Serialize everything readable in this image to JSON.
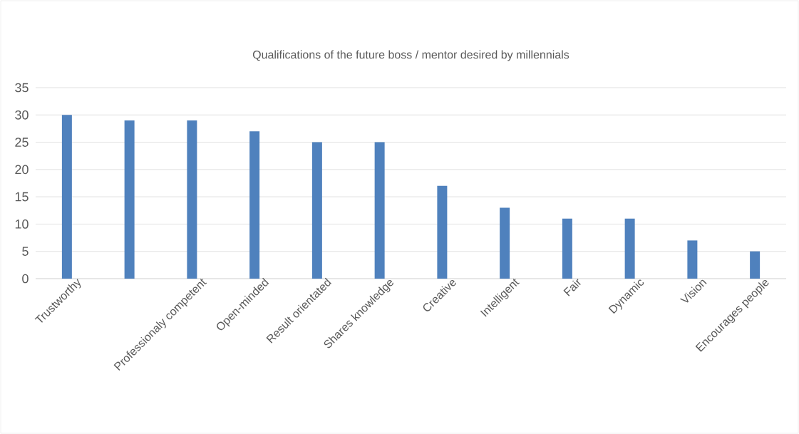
{
  "chart_data": {
    "type": "bar",
    "title": "Qualifications of the future boss / mentor desired by millennials",
    "categories": [
      "Trustworthy",
      null,
      "Professionaly competent",
      "Open-minded",
      "Result orientated",
      "Shares knowledge",
      "Creative",
      "Intelligent",
      "Fair",
      "Dynamic",
      "Vision",
      "Encourages people"
    ],
    "values": [
      30,
      29,
      29,
      27,
      25,
      25,
      17,
      13,
      11,
      11,
      7,
      5
    ],
    "color": "#4f81bd",
    "ylim": [
      0,
      35
    ],
    "yticks": [
      0,
      5,
      10,
      15,
      20,
      25,
      30,
      35
    ],
    "grid": "y"
  }
}
